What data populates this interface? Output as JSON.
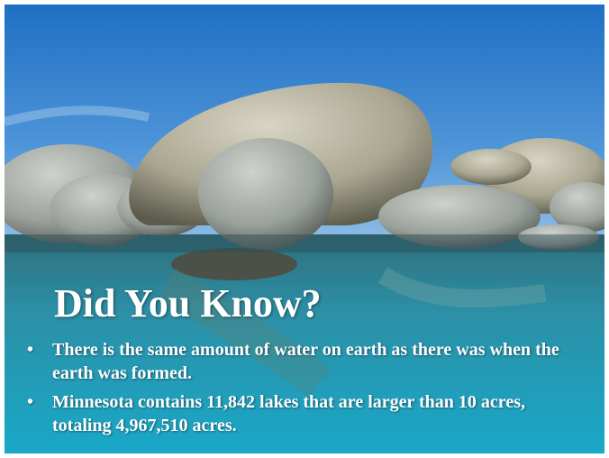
{
  "slide": {
    "title": "Did You Know?",
    "bullets": [
      "There is the same amount of water on earth as there was when the earth was formed.",
      "Minnesota contains 11,842 lakes that are larger than 10 acres, totaling 4,967,510 acres."
    ]
  }
}
